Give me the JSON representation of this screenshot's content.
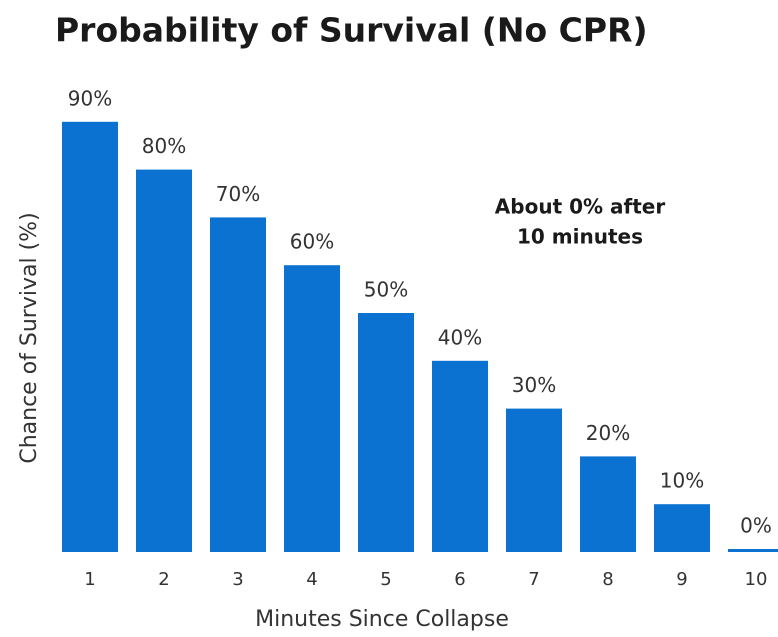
{
  "chart_data": {
    "type": "bar",
    "title": "Probability of Survival (No CPR)",
    "x_label": "Minutes Since Collapse",
    "y_label": "Chance of Survival (%)",
    "annotation": [
      "About 0% after",
      "10 minutes"
    ],
    "categories": [
      "1",
      "2",
      "3",
      "4",
      "5",
      "6",
      "7",
      "8",
      "9",
      "10"
    ],
    "values": [
      90,
      80,
      70,
      60,
      50,
      40,
      30,
      20,
      10,
      0
    ],
    "value_labels": [
      "90%",
      "80%",
      "70%",
      "60%",
      "50%",
      "40%",
      "30%",
      "20%",
      "10%",
      "0%"
    ],
    "color": "#0b72d1",
    "ylim": [
      0,
      100
    ],
    "grid": false
  }
}
